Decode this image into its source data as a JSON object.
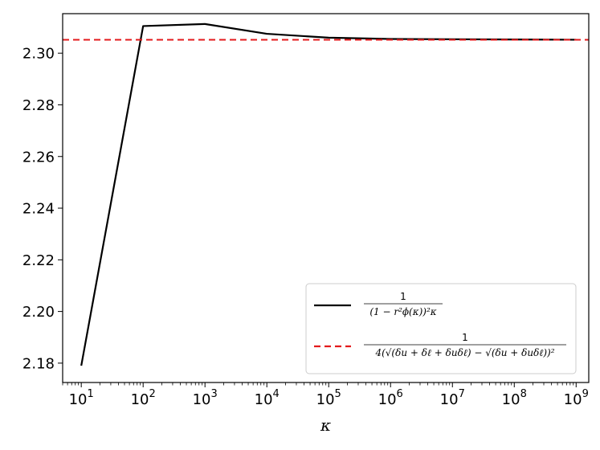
{
  "chart_data": {
    "type": "line",
    "x_scale": "log",
    "xlabel": "κ",
    "ylabel": "",
    "xlim": [
      5,
      1600000000.0
    ],
    "ylim": [
      2.1725,
      2.3153
    ],
    "grid": false,
    "legend_position": "lower-right",
    "x_ticks": [
      {
        "value": 10,
        "base": "10",
        "exp": "1"
      },
      {
        "value": 100,
        "base": "10",
        "exp": "2"
      },
      {
        "value": 1000,
        "base": "10",
        "exp": "3"
      },
      {
        "value": 10000,
        "base": "10",
        "exp": "4"
      },
      {
        "value": 100000,
        "base": "10",
        "exp": "5"
      },
      {
        "value": 1000000,
        "base": "10",
        "exp": "6"
      },
      {
        "value": 10000000,
        "base": "10",
        "exp": "7"
      },
      {
        "value": 100000000,
        "base": "10",
        "exp": "8"
      },
      {
        "value": 1000000000,
        "base": "10",
        "exp": "9"
      }
    ],
    "y_ticks": [
      {
        "value": 2.18,
        "label": "2.18"
      },
      {
        "value": 2.2,
        "label": "2.20"
      },
      {
        "value": 2.22,
        "label": "2.22"
      },
      {
        "value": 2.24,
        "label": "2.24"
      },
      {
        "value": 2.26,
        "label": "2.26"
      },
      {
        "value": 2.28,
        "label": "2.28"
      },
      {
        "value": 2.3,
        "label": "2.30"
      }
    ],
    "series": [
      {
        "color": "#000000",
        "style": "solid",
        "x": [
          10,
          100,
          1000,
          10000,
          100000,
          1000000,
          10000000,
          100000000,
          1000000000
        ],
        "y": [
          2.179,
          2.3105,
          2.3113,
          2.3075,
          2.306,
          2.3055,
          2.3054,
          2.3053,
          2.3052
        ]
      },
      {
        "color": "#e31a1c",
        "style": "dashed",
        "y_constant": 2.3052
      }
    ],
    "legend": [
      {
        "color": "#000000",
        "style": "solid",
        "numerator": "1",
        "denominator": "(1 − r²ϕ(κ))²κ"
      },
      {
        "color": "#e31a1c",
        "style": "dashed",
        "numerator": "1",
        "denominator": "4(√(δu + δℓ + δuδℓ) − √(δu + δuδℓ))²"
      }
    ]
  }
}
